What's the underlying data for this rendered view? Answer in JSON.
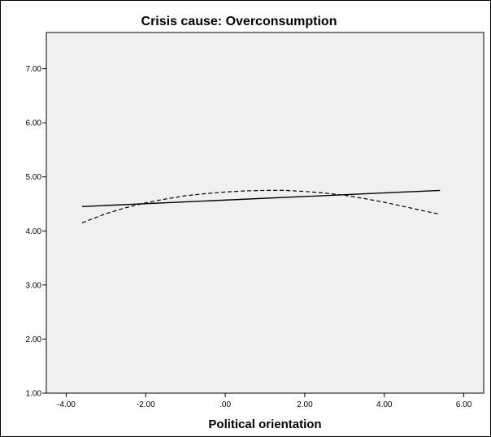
{
  "chart_data": {
    "type": "line",
    "title": "Crisis cause: Overconsumption",
    "xlabel": "Political orientation",
    "ylabel": "",
    "xlim": [
      -4.5,
      6.5
    ],
    "ylim": [
      1.0,
      7.67
    ],
    "x_ticks": [
      "-4.00",
      "-2.00",
      ".00",
      "2.00",
      "4.00",
      "6.00"
    ],
    "y_ticks": [
      "1.00",
      "2.00",
      "3.00",
      "4.00",
      "5.00",
      "6.00",
      "7.00"
    ],
    "grid": false,
    "series": [
      {
        "style": "solid",
        "color": "#000000",
        "x": [
          -3.6,
          5.4
        ],
        "y": [
          4.45,
          4.75
        ]
      },
      {
        "style": "dashed",
        "color": "#000000",
        "x": [
          -3.6,
          -3.0,
          -2.5,
          -2.0,
          -1.5,
          -1.0,
          -0.5,
          0.0,
          0.5,
          1.0,
          1.5,
          2.0,
          2.5,
          3.0,
          3.5,
          4.0,
          4.5,
          5.0,
          5.4
        ],
        "y": [
          4.15,
          4.32,
          4.43,
          4.52,
          4.59,
          4.65,
          4.69,
          4.72,
          4.74,
          4.75,
          4.75,
          4.73,
          4.7,
          4.66,
          4.6,
          4.53,
          4.45,
          4.37,
          4.31
        ]
      }
    ]
  },
  "colors": {
    "plot_background": "#f0f0f0",
    "line": "#000000"
  }
}
